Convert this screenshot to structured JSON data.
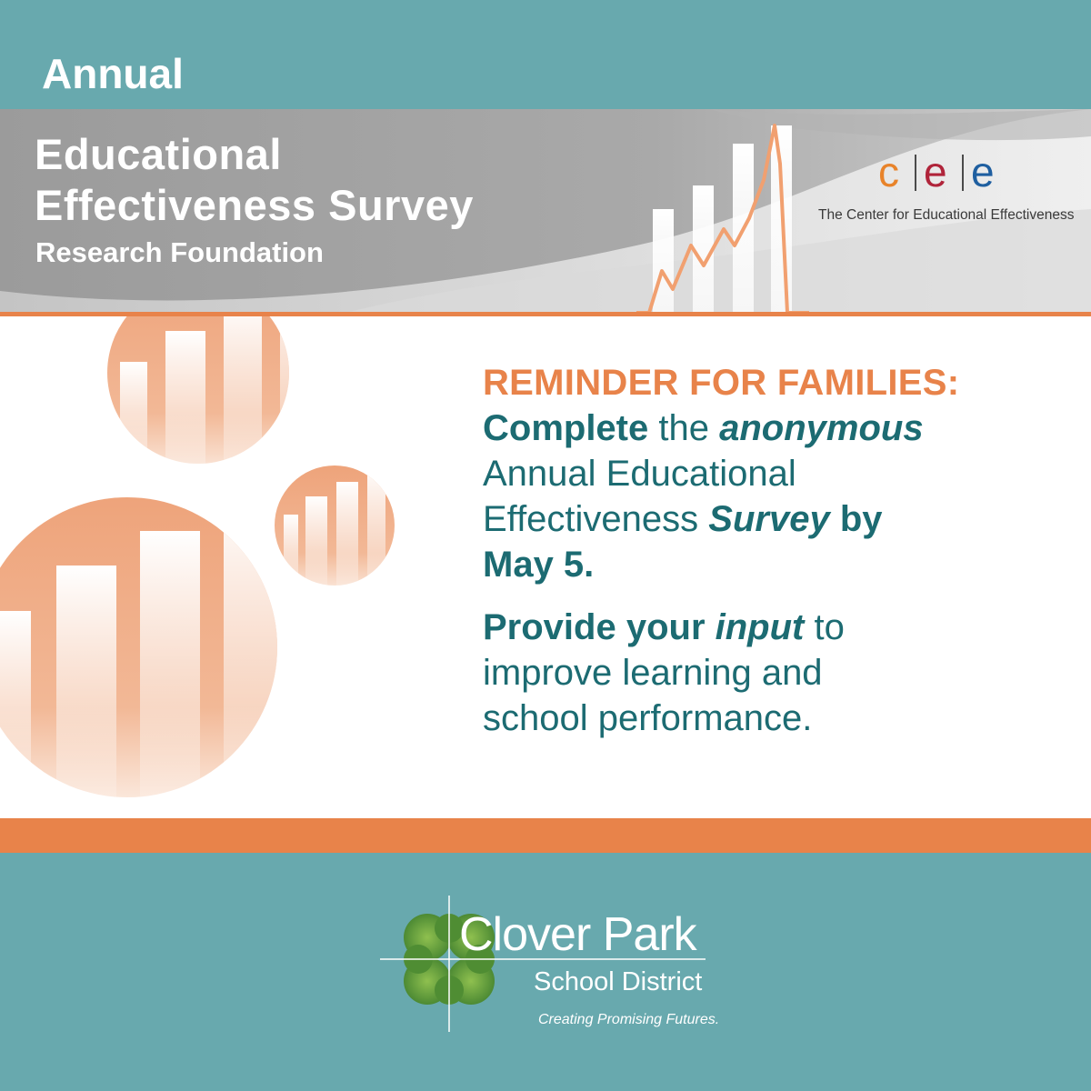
{
  "header": {
    "annual": "Annual",
    "title_line1": "Educational",
    "title_line2": "Effectiveness Survey",
    "subtitle": "Research Foundation"
  },
  "cee_logo": {
    "letters": [
      "c",
      "e",
      "e"
    ],
    "letter_colors": [
      "#e8832a",
      "#b0243a",
      "#1f5fa0"
    ],
    "caption": "The Center for Educational Effectiveness"
  },
  "message": {
    "reminder": "REMINDER FOR FAMILIES:",
    "line1": {
      "a": "Complete",
      "b": " the ",
      "c": "anonymous"
    },
    "line2": "Annual Educational",
    "line3": {
      "a": "Effectiveness ",
      "b": "Survey",
      "c": " by"
    },
    "line4": "May 5.",
    "line5": {
      "a": "Provide your ",
      "b": "input",
      "c": " to"
    },
    "line6": "improve learning and",
    "line7": "school performance."
  },
  "footer_logo": {
    "name": "Clover Park",
    "district": "School District",
    "tagline": "Creating Promising Futures."
  },
  "colors": {
    "teal": "#68a9ae",
    "orange": "#e8834a",
    "dark_teal_text": "#1c6b72",
    "gray_band": "#a7a7a7",
    "clover_green": "#5a9a3a"
  },
  "icons": [
    "bar-chart-graphic",
    "orange-circle-bars-graphic",
    "clover-icon"
  ]
}
